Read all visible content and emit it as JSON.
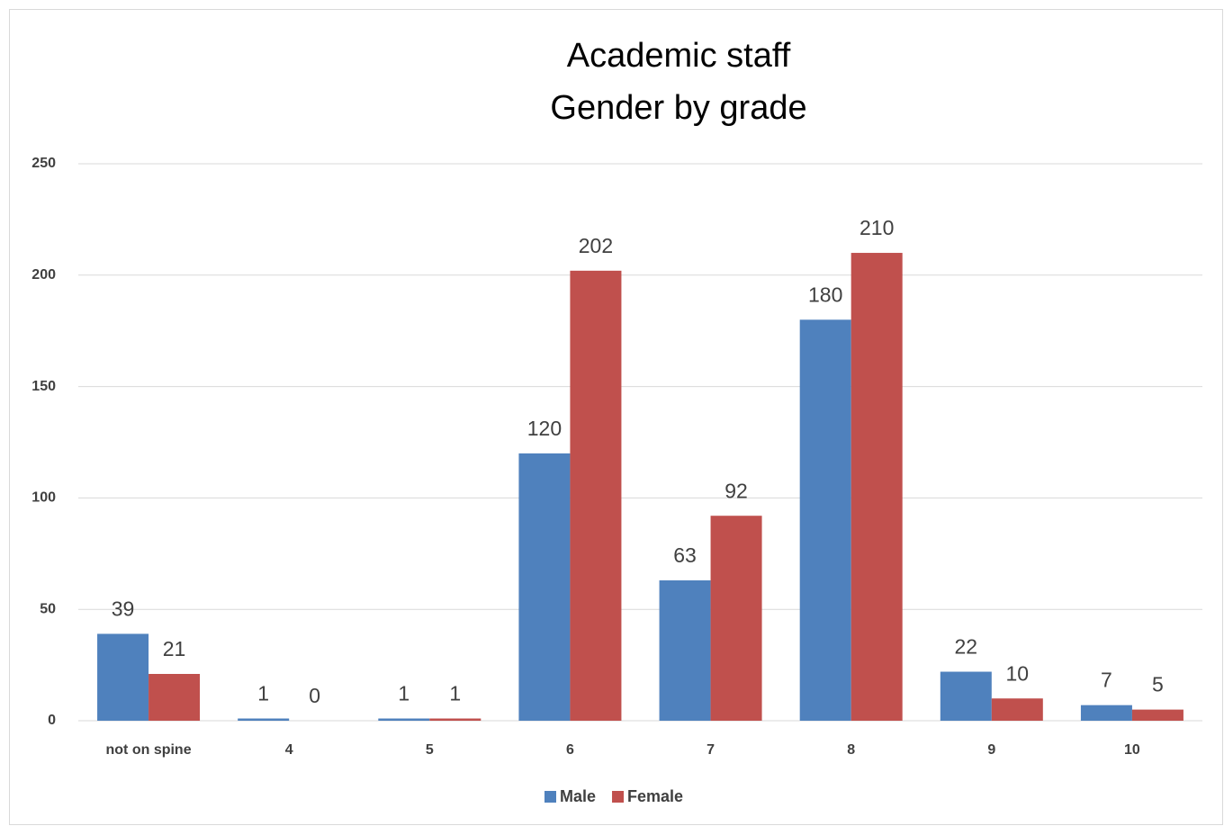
{
  "chart_data": {
    "type": "bar",
    "title": "Academic staff",
    "subtitle": "Gender by grade",
    "categories": [
      "not on spine",
      "4",
      "5",
      "6",
      "7",
      "8",
      "9",
      "10"
    ],
    "series": [
      {
        "name": "Male",
        "color": "#4f81bd",
        "values": [
          39,
          1,
          1,
          120,
          63,
          180,
          22,
          7
        ]
      },
      {
        "name": "Female",
        "color": "#c0504d",
        "values": [
          21,
          0,
          1,
          202,
          92,
          210,
          10,
          5
        ]
      }
    ],
    "ylim": [
      0,
      250
    ],
    "yticks": [
      0,
      50,
      100,
      150,
      200,
      250
    ],
    "grid": true,
    "legend": "bottom"
  }
}
